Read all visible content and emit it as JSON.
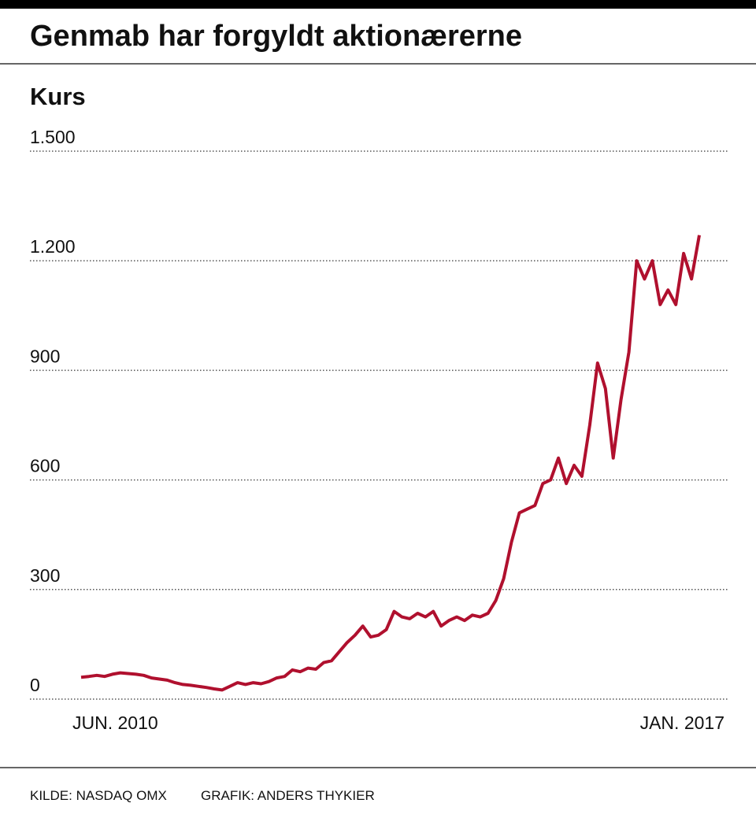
{
  "chart_data": {
    "type": "line",
    "title": "Genmab har forgyldt aktionærerne",
    "y_label": "Kurs",
    "source": "KILDE: NASDAQ OMX",
    "credit": "GRAFIK: ANDERS THYKIER",
    "categories": [
      "JUN. 2010",
      null,
      null,
      null,
      null,
      null,
      null,
      null,
      null,
      null,
      null,
      null,
      null,
      null,
      null,
      null,
      null,
      null,
      null,
      null,
      null,
      null,
      null,
      null,
      null,
      null,
      null,
      null,
      null,
      null,
      null,
      null,
      null,
      null,
      null,
      null,
      null,
      null,
      null,
      null,
      null,
      null,
      null,
      null,
      null,
      null,
      null,
      null,
      null,
      null,
      null,
      null,
      null,
      null,
      null,
      null,
      null,
      null,
      null,
      null,
      null,
      null,
      null,
      null,
      null,
      null,
      null,
      null,
      null,
      null,
      null,
      null,
      null,
      null,
      null,
      null,
      null,
      null,
      null,
      "JAN. 2017"
    ],
    "series": [
      {
        "name": "Kurs",
        "color": "#b0102e",
        "values": [
          60,
          62,
          65,
          62,
          68,
          72,
          70,
          68,
          65,
          58,
          55,
          52,
          45,
          40,
          38,
          35,
          32,
          28,
          25,
          35,
          45,
          40,
          45,
          42,
          48,
          58,
          62,
          80,
          75,
          85,
          82,
          100,
          105,
          130,
          155,
          175,
          200,
          170,
          175,
          190,
          240,
          225,
          220,
          235,
          225,
          240,
          200,
          215,
          225,
          215,
          230,
          225,
          235,
          270,
          330,
          430,
          510,
          520,
          530,
          590,
          600,
          660,
          590,
          640,
          610,
          750,
          920,
          850,
          660,
          820,
          950,
          1200,
          1150,
          1200,
          1080,
          1120,
          1080,
          1220,
          1150,
          1270
        ]
      }
    ],
    "ylim": [
      0,
      1500
    ],
    "yticks": [
      0,
      300,
      600,
      900,
      {
        "value": 1200,
        "label": "1.200"
      },
      {
        "value": 1500,
        "label": "1.500"
      }
    ],
    "grid": true
  }
}
